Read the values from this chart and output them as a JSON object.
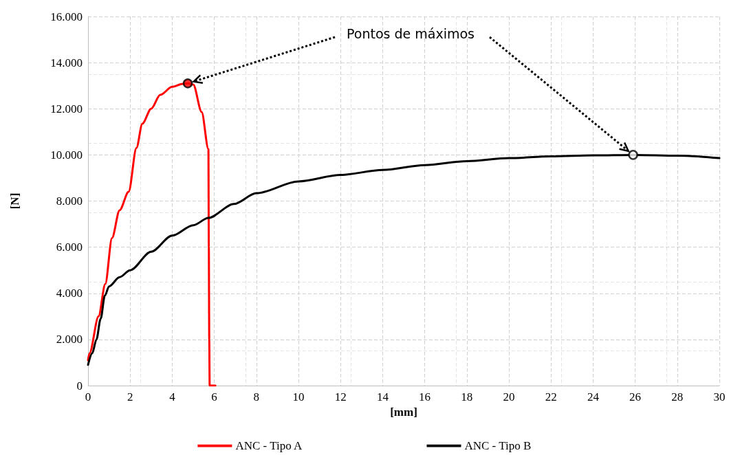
{
  "chart_data": {
    "type": "line",
    "xlabel": "[mm]",
    "ylabel": "[N]",
    "xlim": [
      0,
      30
    ],
    "xticks": [
      0,
      2,
      4,
      6,
      8,
      10,
      12,
      14,
      16,
      18,
      20,
      22,
      24,
      26,
      28,
      30
    ],
    "ylim": [
      0,
      16000
    ],
    "yticks": [
      {
        "value": 0,
        "label": "0"
      },
      {
        "value": 2000,
        "label": "2.000"
      },
      {
        "value": 4000,
        "label": "4.000"
      },
      {
        "value": 6000,
        "label": "6.000"
      },
      {
        "value": 8000,
        "label": "8.000"
      },
      {
        "value": 10000,
        "label": "10.000"
      },
      {
        "value": 12000,
        "label": "12.000"
      },
      {
        "value": 14000,
        "label": "14.000"
      },
      {
        "value": 16000,
        "label": "16.000"
      }
    ],
    "grid": true,
    "legend": "bottom",
    "marker": "none",
    "line_style": "solid",
    "annotations": [
      {
        "text": "Pontos de máximos",
        "x": 4.74,
        "y": 13100
      }
    ],
    "series": [
      {
        "name": "ANC - Tipo A",
        "color": "#ff0000",
        "x": [
          0,
          0.07,
          0.5,
          0.82,
          1.14,
          1.5,
          1.93,
          2.3,
          2.58,
          3,
          3.43,
          4,
          4.5,
          4.74,
          5,
          5.4,
          5.72,
          5.74,
          5.76,
          5.78,
          6.05
        ],
        "values": [
          1100,
          1400,
          3000,
          4400,
          6400,
          7600,
          8400,
          10300,
          11350,
          12000,
          12600,
          12950,
          13080,
          13100,
          13050,
          11860,
          10250,
          6000,
          2000,
          0,
          0
        ]
      },
      {
        "name": "ANC - Tipo B",
        "color": "#000000",
        "x": [
          0,
          0.2,
          0.4,
          0.6,
          0.8,
          1,
          1.5,
          2,
          3,
          4,
          5,
          5.72,
          6.93,
          8,
          10,
          12,
          14,
          16,
          18,
          20,
          22,
          24,
          26,
          28,
          30
        ],
        "values": [
          900,
          1400,
          2000,
          2900,
          3900,
          4300,
          4700,
          5000,
          5800,
          6500,
          6950,
          7270,
          7870,
          8340,
          8850,
          9130,
          9350,
          9560,
          9730,
          9860,
          9940,
          9980,
          10000,
          9970,
          9860
        ]
      },
      {
        "type": "scatter",
        "marker": "circle",
        "color": "#ff0000",
        "x": [
          4.74
        ],
        "values": [
          13100
        ]
      },
      {
        "type": "scatter",
        "marker": "circle",
        "color": "#ffffff",
        "x": [
          25.9
        ],
        "values": [
          10000
        ]
      }
    ]
  }
}
